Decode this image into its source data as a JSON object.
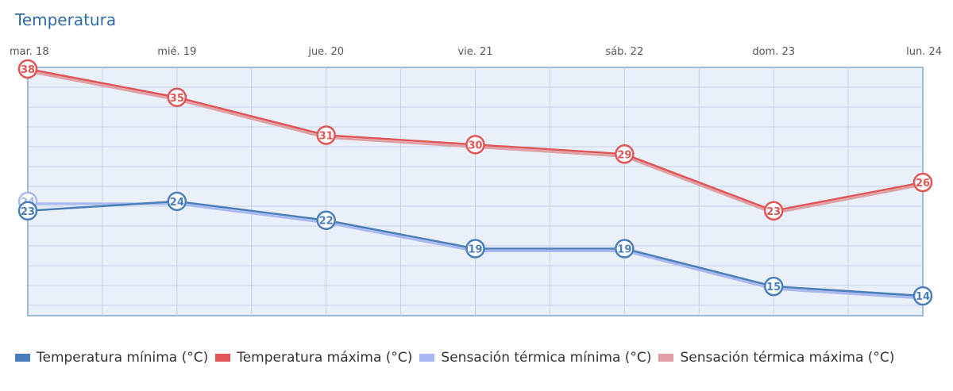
{
  "chart_data": {
    "type": "line",
    "title": "Temperatura",
    "categories": [
      "mar. 18",
      "mié. 19",
      "jue. 20",
      "vie. 21",
      "sáb. 22",
      "dom. 23",
      "lun. 24"
    ],
    "series": [
      {
        "name": "Temperatura mínima (°C)",
        "values": [
          23,
          24,
          22,
          19,
          19,
          15,
          14
        ],
        "color": "#4a7ebb"
      },
      {
        "name": "Temperatura máxima (°C)",
        "values": [
          38,
          35,
          31,
          30,
          29,
          23,
          26
        ],
        "color": "#e05555"
      },
      {
        "name": "Sensación térmica mínima (°C)",
        "values": [
          24,
          24,
          22,
          19,
          19,
          15,
          14
        ],
        "color": "#a9b8f0"
      },
      {
        "name": "Sensación térmica máxima (°C)",
        "values": [
          38,
          35,
          31,
          30,
          29,
          23,
          26
        ],
        "color": "#e0a0a5"
      }
    ],
    "ylim": [
      12,
      38
    ],
    "grid": true,
    "legend_position": "bottom"
  }
}
